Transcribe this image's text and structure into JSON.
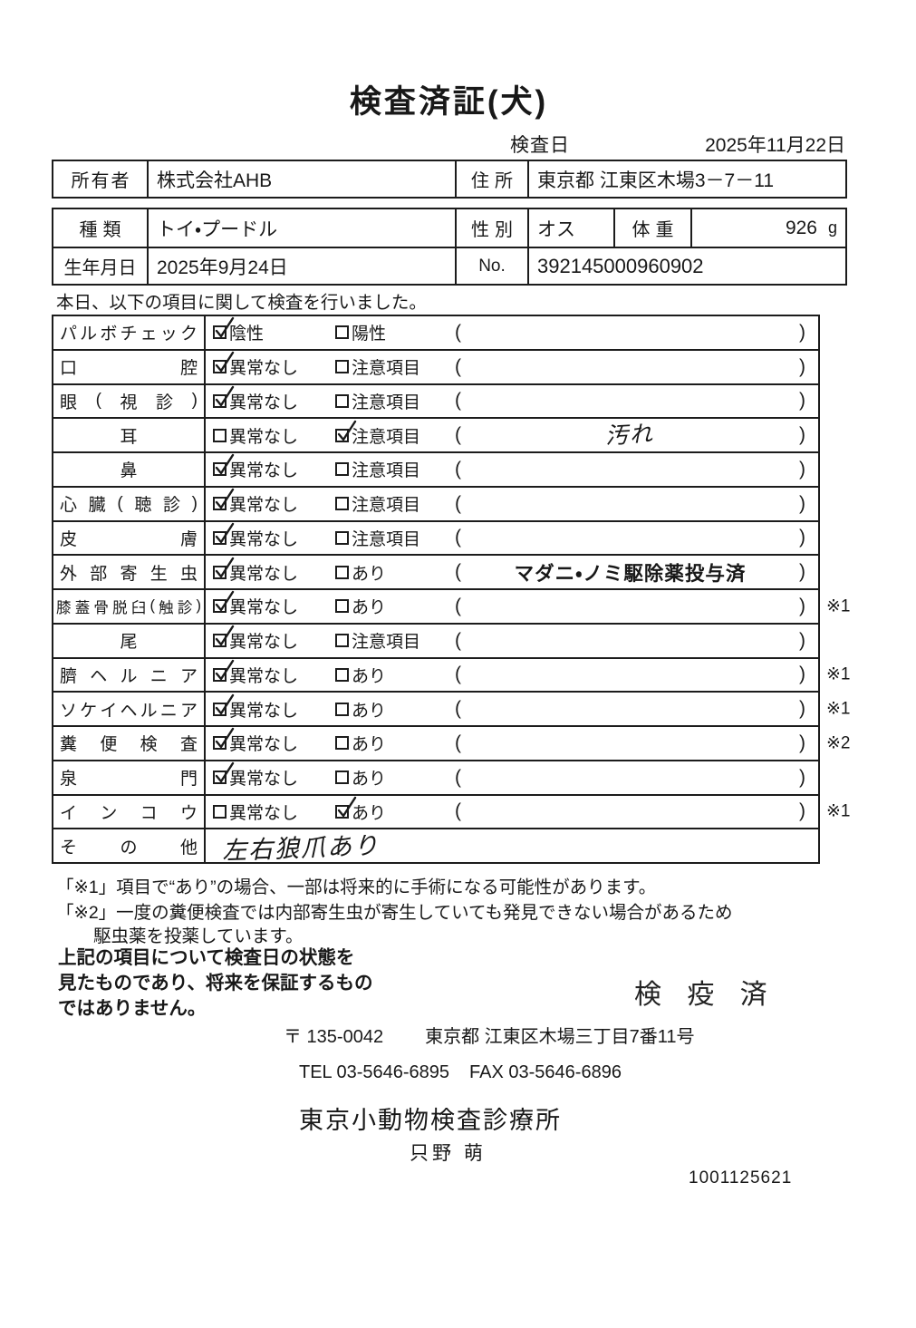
{
  "title": "検査済証(犬)",
  "inspection_date": {
    "label": "検査日",
    "value": "2025年11月22日"
  },
  "owner": {
    "label": "所有者",
    "value": "株式会社AHB",
    "address_label": "住所",
    "address_value": "東京都 江東区木場3－7－11"
  },
  "pet": {
    "breed_label": "種類",
    "breed": "トイ・プードル",
    "sex_label": "性別",
    "sex": "オス",
    "weight_label": "体重",
    "weight": "926",
    "weight_unit": "g",
    "birth_label": "生年月日",
    "birth": "2025年9月24日",
    "no_label": "No.",
    "no": "392145000960902"
  },
  "intro": "本日、以下の項目に関して検査を行いました。",
  "checklist": {
    "paren_open": "(",
    "paren_close": ")",
    "rows": [
      {
        "label": "パルボチェック",
        "align": "justify",
        "opt1": "陰性",
        "opt1_checked": true,
        "opt2": "陽性",
        "opt2_checked": false,
        "note": "",
        "note_style": "",
        "mark": ""
      },
      {
        "label": "口腔",
        "align": "justify",
        "opt1": "異常なし",
        "opt1_checked": true,
        "opt2": "注意項目",
        "opt2_checked": false,
        "note": "",
        "note_style": "",
        "mark": ""
      },
      {
        "label": "眼(視診)",
        "align": "justify",
        "opt1": "異常なし",
        "opt1_checked": true,
        "opt2": "注意項目",
        "opt2_checked": false,
        "note": "",
        "note_style": "",
        "mark": ""
      },
      {
        "label": "耳",
        "align": "center",
        "opt1": "異常なし",
        "opt1_checked": false,
        "opt2": "注意項目",
        "opt2_checked": true,
        "note": "汚れ",
        "note_style": "hand",
        "mark": ""
      },
      {
        "label": "鼻",
        "align": "center",
        "opt1": "異常なし",
        "opt1_checked": true,
        "opt2": "注意項目",
        "opt2_checked": false,
        "note": "",
        "note_style": "",
        "mark": ""
      },
      {
        "label": "心臓(聴診)",
        "align": "justify",
        "opt1": "異常なし",
        "opt1_checked": true,
        "opt2": "注意項目",
        "opt2_checked": false,
        "note": "",
        "note_style": "",
        "mark": ""
      },
      {
        "label": "皮膚",
        "align": "justify",
        "opt1": "異常なし",
        "opt1_checked": true,
        "opt2": "注意項目",
        "opt2_checked": false,
        "note": "",
        "note_style": "",
        "mark": ""
      },
      {
        "label": "外部寄生虫",
        "align": "justify",
        "opt1": "異常なし",
        "opt1_checked": true,
        "opt2": "あり",
        "opt2_checked": false,
        "note": "マダニ・ノミ駆除薬投与済",
        "note_style": "printed",
        "mark": ""
      },
      {
        "label": "膝蓋骨脱臼(触診)",
        "align": "tight",
        "opt1": "異常なし",
        "opt1_checked": true,
        "opt2": "あり",
        "opt2_checked": false,
        "note": "",
        "note_style": "",
        "mark": "※1"
      },
      {
        "label": "尾",
        "align": "center",
        "opt1": "異常なし",
        "opt1_checked": true,
        "opt2": "注意項目",
        "opt2_checked": false,
        "note": "",
        "note_style": "",
        "mark": ""
      },
      {
        "label": "臍ヘルニア",
        "align": "justify",
        "opt1": "異常なし",
        "opt1_checked": true,
        "opt2": "あり",
        "opt2_checked": false,
        "note": "",
        "note_style": "",
        "mark": "※1"
      },
      {
        "label": "ソケイヘルニア",
        "align": "justify",
        "opt1": "異常なし",
        "opt1_checked": true,
        "opt2": "あり",
        "opt2_checked": false,
        "note": "",
        "note_style": "",
        "mark": "※1"
      },
      {
        "label": "糞便検査",
        "align": "justify",
        "opt1": "異常なし",
        "opt1_checked": true,
        "opt2": "あり",
        "opt2_checked": false,
        "note": "",
        "note_style": "",
        "mark": "※2"
      },
      {
        "label": "泉門",
        "align": "justify",
        "opt1": "異常なし",
        "opt1_checked": true,
        "opt2": "あり",
        "opt2_checked": false,
        "note": "",
        "note_style": "",
        "mark": ""
      },
      {
        "label": "インコウ",
        "align": "justify",
        "opt1": "異常なし",
        "opt1_checked": false,
        "opt2": "あり",
        "opt2_checked": true,
        "note": "",
        "note_style": "",
        "mark": "※1"
      },
      {
        "label": "その他",
        "align": "justify",
        "free_text": "左右狼爪あり"
      }
    ]
  },
  "footnotes": {
    "line1": "「※1」項目で“あり”の場合、一部は将来的に手術になる可能性があります。",
    "line2": "「※2」一度の糞便検査では内部寄生虫が寄生していても発見できない場合があるため",
    "line3": "駆虫薬を投薬しています。"
  },
  "disclaimer": {
    "line1": "上記の項目について検査日の状態を",
    "line2": "見たものであり、将来を保証するもの",
    "line3": "ではありません。"
  },
  "stamp": "検 疫 済",
  "clinic": {
    "postal": "〒 135-0042",
    "address": "東京都 江東区木場三丁目7番11号",
    "tel": "TEL 03-5646-6895",
    "fax": "FAX 03-5646-6896",
    "name": "東京小動物検査診療所",
    "examiner": "只野 萌",
    "serial": "1001125621"
  }
}
